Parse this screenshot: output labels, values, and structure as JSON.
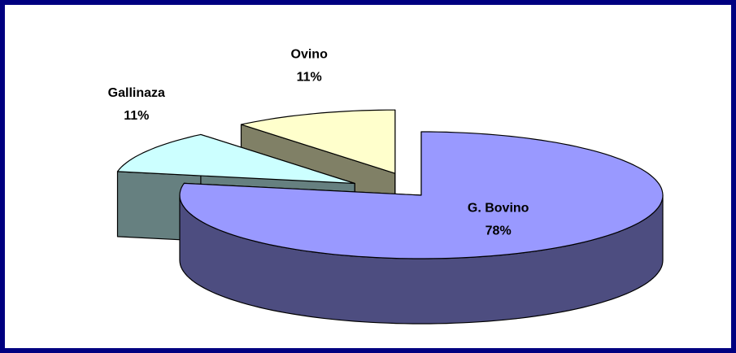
{
  "chart_data": {
    "type": "pie3d",
    "categories": [
      "G. Bovino",
      "Gallinaza",
      "Ovino"
    ],
    "values": [
      78,
      11,
      11
    ],
    "value_labels": [
      "78%",
      "11%",
      "11%"
    ],
    "colors": [
      "#9999ff",
      "#ccffff",
      "#ffffcc"
    ]
  }
}
